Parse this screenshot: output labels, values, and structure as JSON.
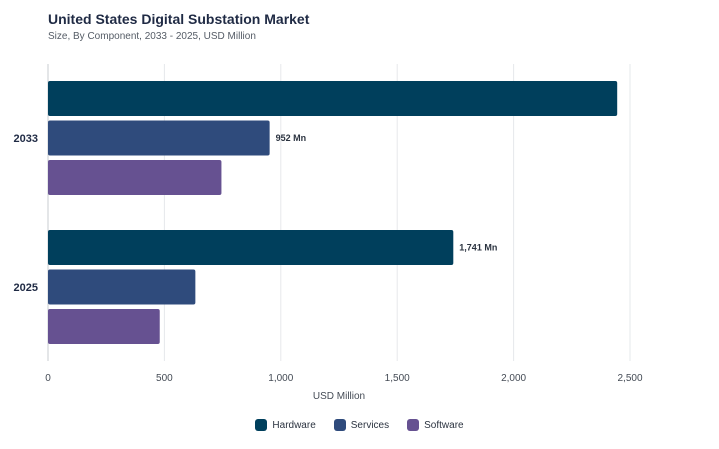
{
  "chart_data": {
    "type": "bar",
    "orientation": "horizontal",
    "title": "United States Digital Substation Market",
    "subtitle": "Size, By Component, 2033 - 2025, USD Million",
    "xlabel": "USD Million",
    "ylabel": "",
    "xlim": [
      0,
      2500
    ],
    "xticks": [
      0,
      500,
      1000,
      1500,
      2000,
      2500
    ],
    "xtick_labels": [
      "0",
      "500",
      "1,000",
      "1,500",
      "2,000",
      "2,500"
    ],
    "grid": "vertical",
    "legend_position": "bottom",
    "categories": [
      "2033",
      "2025"
    ],
    "series": [
      {
        "name": "Hardware",
        "color": "#003f5c",
        "values": [
          2445,
          1741
        ],
        "labels": [
          "",
          "1,741 Mn"
        ]
      },
      {
        "name": "Services",
        "color": "#2f4b7c",
        "values": [
          952,
          633
        ],
        "labels": [
          "952 Mn",
          ""
        ]
      },
      {
        "name": "Software",
        "color": "#665191",
        "values": [
          745,
          480
        ],
        "labels": [
          "",
          ""
        ]
      }
    ]
  }
}
